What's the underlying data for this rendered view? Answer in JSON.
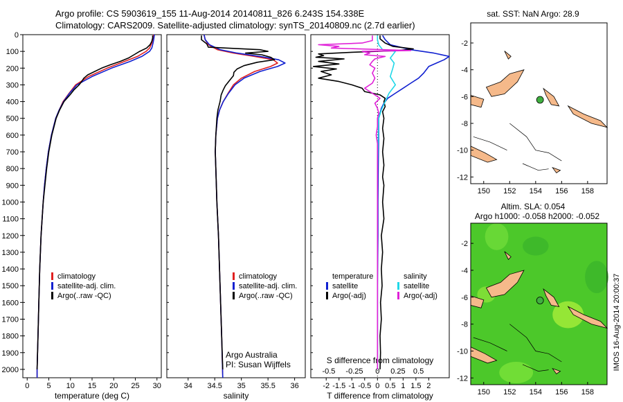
{
  "title": {
    "line1": "Argo profile: CS 5903619_155 11-Aug-2014 20140811_826 6.243S 154.338E",
    "line2": "Climatology: CARS2009. Satellite-adjusted climatology: synTS_20140809.nc (2.7d earlier)"
  },
  "footer": "IMOS 16-Aug-2014 20:00:37",
  "credit": {
    "line1": "Argo Australia",
    "line2": "PI: Susan Wijffels"
  },
  "colors": {
    "climatology": "#e02020",
    "satellite": "#1020d0",
    "argo": "#000000",
    "salinity_sat": "#20d8e8",
    "salinity_argo": "#e020d8",
    "land": "#f5b98a",
    "sla_bg": "#4cc82a",
    "float_marker": "#40b040"
  },
  "depth_axis": {
    "ylim": [
      0,
      2050
    ],
    "ticks": [
      0,
      100,
      200,
      300,
      400,
      500,
      600,
      700,
      800,
      900,
      1000,
      1100,
      1200,
      1300,
      1400,
      1500,
      1600,
      1700,
      1800,
      1900,
      2000
    ]
  },
  "chart_data": [
    {
      "type": "line",
      "xlabel": "temperature (deg C)",
      "xlim": [
        -1,
        31
      ],
      "xticks": [
        0,
        5,
        10,
        15,
        20,
        25,
        30
      ],
      "ylim": [
        2050,
        0
      ],
      "legend": [
        "climatology",
        "satellite-adj. clim.",
        "Argo(..raw -QC)"
      ],
      "series": [
        {
          "name": "climatology",
          "color": "#e02020",
          "depth": [
            0,
            20,
            50,
            80,
            100,
            130,
            160,
            200,
            250,
            300,
            350,
            400,
            450,
            500,
            600,
            700,
            800,
            900,
            1000,
            1200,
            1400,
            1600,
            1800,
            2000,
            2050
          ],
          "values": [
            29.2,
            29.1,
            28.8,
            28.3,
            27.5,
            25.5,
            22.5,
            18.5,
            14.2,
            11.2,
            9.7,
            8.3,
            7.4,
            6.6,
            5.6,
            4.9,
            4.4,
            4.0,
            3.7,
            3.2,
            2.9,
            2.7,
            2.5,
            2.3,
            2.3
          ]
        },
        {
          "name": "satellite-adj. clim.",
          "color": "#1020d0",
          "depth": [
            0,
            20,
            50,
            80,
            100,
            130,
            160,
            200,
            250,
            300,
            350,
            400,
            450,
            500,
            600,
            700,
            800,
            900,
            1000,
            1200,
            1400,
            1600,
            1800,
            2000,
            2050
          ],
          "values": [
            29.4,
            29.3,
            29.1,
            28.8,
            28.3,
            26.5,
            23.8,
            19.5,
            15.0,
            11.5,
            9.8,
            8.4,
            7.4,
            6.6,
            5.6,
            4.9,
            4.4,
            4.0,
            3.7,
            3.2,
            2.9,
            2.7,
            2.5,
            2.3,
            2.3
          ]
        },
        {
          "name": "Argo(..raw -QC)",
          "color": "#000000",
          "depth": [
            5,
            20,
            40,
            60,
            80,
            100,
            120,
            140,
            160,
            180,
            200,
            220,
            240,
            260,
            280,
            300,
            330,
            360,
            400,
            450,
            500,
            600,
            700,
            800,
            900,
            1000,
            1200,
            1400,
            1600,
            1800,
            2000
          ],
          "values": [
            29.0,
            29.0,
            28.8,
            28.4,
            27.6,
            26.0,
            24.7,
            23.4,
            21.5,
            19.2,
            17.2,
            15.6,
            14.0,
            13.1,
            12.6,
            12.0,
            10.8,
            9.9,
            8.5,
            7.5,
            6.7,
            5.7,
            5.0,
            4.5,
            4.1,
            3.7,
            3.2,
            2.9,
            2.7,
            2.5,
            2.3
          ]
        }
      ]
    },
    {
      "type": "line",
      "xlabel": "salinity",
      "xlim": [
        33.6,
        36.2
      ],
      "xticks": [
        34,
        34.5,
        35,
        35.5,
        36
      ],
      "ylim": [
        2050,
        0
      ],
      "legend": [
        "climatology",
        "satellite-adj. clim.",
        "Argo(..raw -QC)"
      ],
      "series": [
        {
          "name": "climatology",
          "color": "#e02020",
          "depth": [
            0,
            30,
            60,
            90,
            110,
            130,
            150,
            170,
            190,
            220,
            260,
            300,
            350,
            400,
            450,
            500,
            600,
            700,
            800,
            1000,
            1200,
            1500,
            1800,
            2050
          ],
          "values": [
            34.3,
            34.32,
            34.38,
            34.55,
            34.85,
            35.25,
            35.6,
            35.68,
            35.55,
            35.25,
            35.0,
            34.85,
            34.75,
            34.66,
            34.59,
            34.55,
            34.52,
            34.51,
            34.52,
            34.54,
            34.57,
            34.6,
            34.63,
            34.65
          ]
        },
        {
          "name": "satellite-adj. clim.",
          "color": "#1020d0",
          "depth": [
            0,
            30,
            60,
            90,
            110,
            130,
            150,
            170,
            190,
            220,
            260,
            300,
            350,
            400,
            450,
            500,
            600,
            700,
            800,
            1000,
            1200,
            1500,
            1800,
            2050
          ],
          "values": [
            34.3,
            34.32,
            34.4,
            34.6,
            34.92,
            35.35,
            35.7,
            35.82,
            35.68,
            35.35,
            35.05,
            34.88,
            34.76,
            34.66,
            34.59,
            34.55,
            34.52,
            34.51,
            34.52,
            34.54,
            34.57,
            34.6,
            34.63,
            34.65
          ]
        },
        {
          "name": "Argo(..raw -QC)",
          "color": "#000000",
          "depth": [
            5,
            30,
            55,
            75,
            90,
            100,
            110,
            120,
            135,
            150,
            165,
            185,
            205,
            225,
            245,
            265,
            285,
            305,
            330,
            360,
            400,
            450,
            500,
            600,
            700,
            800,
            1000,
            1200,
            1500,
            1800,
            2000
          ],
          "values": [
            34.25,
            34.25,
            34.35,
            34.38,
            35.35,
            35.5,
            35.08,
            35.38,
            35.55,
            35.62,
            35.3,
            35.05,
            34.92,
            34.86,
            34.85,
            34.8,
            34.75,
            34.7,
            34.66,
            34.62,
            34.6,
            34.56,
            34.54,
            34.52,
            34.51,
            34.52,
            34.54,
            34.57,
            34.6,
            34.63,
            34.65
          ]
        }
      ]
    },
    {
      "type": "line",
      "xlabel": "T difference from climatology",
      "xlabel_top": "S difference from climatology",
      "xlim": [
        -2.6,
        2.8
      ],
      "xticks": [
        -2,
        -1.5,
        -1,
        -0.5,
        0,
        0.5,
        1,
        1.5,
        2
      ],
      "xticklabels": [
        "-2",
        "-1.5",
        "-1",
        "-0.5",
        "0",
        "0.5",
        "1",
        "1.5",
        "2"
      ],
      "xticks_top": [
        -0.5,
        -0.25,
        0,
        0.25,
        0.5
      ],
      "xticks_top_pos": [
        -1.9,
        -0.9,
        0,
        0.8,
        1.6
      ],
      "ylim": [
        2050,
        0
      ],
      "legend": [
        "temperature",
        "satellite",
        "Argo(-adj)",
        "salinity",
        "satellite",
        "Argo(-adj)"
      ],
      "series": [
        {
          "name": "T satellite",
          "color": "#1020d0",
          "depth": [
            5,
            30,
            60,
            90,
            110,
            130,
            150,
            170,
            190,
            210,
            230,
            260,
            290,
            320,
            350,
            380,
            410,
            440,
            470,
            500,
            600,
            800,
            1000,
            1200,
            1500,
            2000
          ],
          "values": [
            0.2,
            0.3,
            0.5,
            1.3,
            2.2,
            2.8,
            2.6,
            2.3,
            2.0,
            1.9,
            1.8,
            1.6,
            1.3,
            1.0,
            0.7,
            0.4,
            0.25,
            0.15,
            0.1,
            0.05,
            0.05,
            0.03,
            0.02,
            0.02,
            0.0,
            0.0
          ]
        },
        {
          "name": "T Argo(-adj)",
          "color": "#000000",
          "depth": [
            5,
            25,
            50,
            70,
            85,
            95,
            105,
            115,
            125,
            135,
            145,
            160,
            175,
            190,
            205,
            220,
            240,
            260,
            280,
            300,
            320,
            340,
            360,
            380,
            400,
            430,
            460,
            500,
            560,
            620,
            700,
            780,
            850,
            900,
            1000,
            1100,
            1200,
            1300,
            1400,
            1500,
            1600,
            1700,
            1800,
            1900,
            2000
          ],
          "values": [
            0.1,
            0.1,
            0.3,
            0.6,
            1.4,
            0.8,
            -1.0,
            -2.3,
            -2.1,
            -2.4,
            -1.3,
            -2.3,
            -1.5,
            -2.5,
            -1.6,
            -2.2,
            -1.8,
            -2.3,
            -1.5,
            -1.0,
            -0.6,
            -0.5,
            0.1,
            0.3,
            0.25,
            0.3,
            0.2,
            0.25,
            0.2,
            0.25,
            0.2,
            0.25,
            0.2,
            0.25,
            0.2,
            0.25,
            0.15,
            0.2,
            0.15,
            0.18,
            0.12,
            0.15,
            0.1,
            0.12,
            0.1
          ]
        },
        {
          "name": "S satellite",
          "color": "#20d8e8",
          "depth": [
            5,
            30,
            60,
            90,
            100,
            120,
            140,
            170,
            200,
            250,
            300,
            350,
            400,
            450,
            500,
            800,
            1000,
            1300,
            1500,
            2000
          ],
          "values": [
            0.0,
            0.0,
            0.05,
            0.2,
            0.7,
            0.6,
            0.5,
            0.65,
            0.6,
            0.5,
            0.7,
            0.45,
            0.3,
            0.15,
            0.05,
            0.0,
            0.0,
            0.0,
            0.0,
            0.0
          ]
        },
        {
          "name": "S Argo(-adj)",
          "color": "#e020d8",
          "depth": [
            5,
            35,
            50,
            60,
            70,
            80,
            95,
            100,
            110,
            120,
            130,
            145,
            160,
            180,
            200,
            230,
            260,
            290,
            320,
            350,
            380,
            410,
            440,
            470,
            500,
            550,
            600,
            650,
            700,
            800,
            1000,
            1200,
            1500,
            2000
          ],
          "values": [
            -0.2,
            -0.2,
            -0.6,
            -2.3,
            -1.5,
            -1.8,
            1.3,
            -0.6,
            -0.3,
            -0.5,
            0.3,
            -0.1,
            -0.2,
            -0.3,
            -0.1,
            -0.2,
            -0.1,
            -0.2,
            -0.5,
            -0.2,
            0.1,
            -0.1,
            0.0,
            0.05,
            0.0,
            0.0,
            -0.05,
            0.0,
            0.0,
            0.0,
            0.0,
            0.0,
            0.0,
            0.0
          ]
        }
      ]
    },
    {
      "type": "heatmap",
      "title": "sat. SST: NaN Argo: 28.9",
      "xlim": [
        149,
        159.5
      ],
      "ylim": [
        -12.5,
        -0.5
      ],
      "xticks": [
        150,
        152,
        154,
        156,
        158
      ],
      "yticks": [
        -2,
        -4,
        -6,
        -8,
        -10,
        -12
      ],
      "float": {
        "lon": 154.338,
        "lat": -6.243
      }
    },
    {
      "type": "heatmap",
      "title": "Altim. SLA: 0.054",
      "subtitle": "Argo h1000: -0.058 h2000: -0.052",
      "xlim": [
        149,
        159.5
      ],
      "ylim": [
        -12.5,
        -0.5
      ],
      "xticks": [
        150,
        152,
        154,
        156,
        158
      ],
      "yticks": [
        -2,
        -4,
        -6,
        -8,
        -10,
        -12
      ],
      "float": {
        "lon": 154.338,
        "lat": -6.243
      }
    }
  ]
}
